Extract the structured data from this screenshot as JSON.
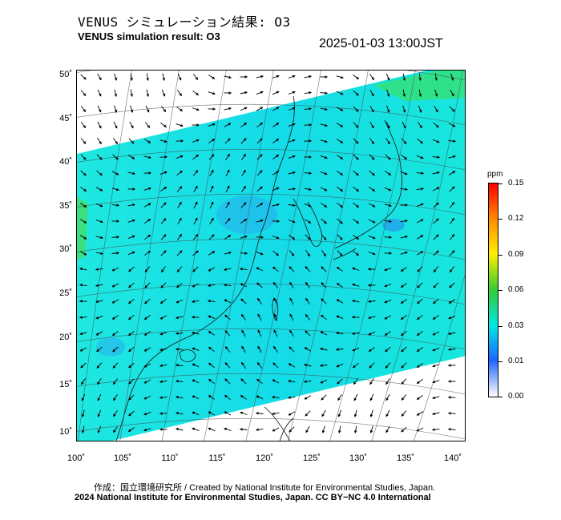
{
  "title_jp": "VENUS シミュレーション結果: O3",
  "title_en": "VENUS simulation result: O3",
  "timestamp": "2025-01-03 13:00JST",
  "lat_labels": [
    "50˚",
    "45˚",
    "40˚",
    "35˚",
    "30˚",
    "25˚",
    "20˚",
    "15˚",
    "10˚"
  ],
  "lon_labels": [
    "100˚",
    "105˚",
    "110˚",
    "115˚",
    "120˚",
    "125˚",
    "130˚",
    "135˚",
    "140˚"
  ],
  "colorbar": {
    "unit": "ppm",
    "ticks": [
      "0.15",
      "0.12",
      "0.09",
      "0.06",
      "0.03",
      "0.01",
      "0.00"
    ],
    "colors": [
      "#ff0000",
      "#ff8c00",
      "#ffee00",
      "#33cc33",
      "#00e6e6",
      "#1e64ff",
      "#ffffff"
    ]
  },
  "credits": {
    "line1": "作成：国立環境研究所 / Created by National Institute for Environmental Studies, Japan.",
    "line2": "2024 National Institute for Environmental Studies, Japan. CC BY−NC 4.0 International"
  }
}
